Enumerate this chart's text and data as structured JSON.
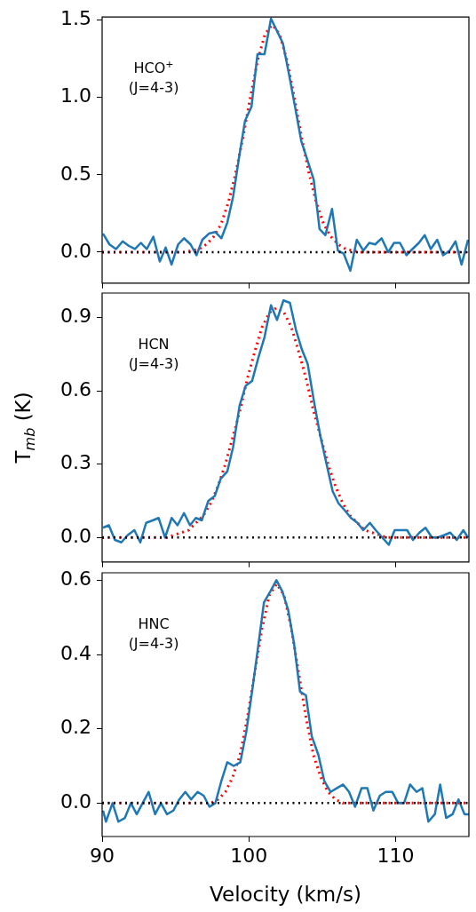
{
  "chart_data": [
    {
      "type": "line",
      "xlim": [
        90,
        115
      ],
      "xticks": [
        90,
        100,
        110
      ],
      "ylim": [
        -0.2,
        1.52
      ],
      "yticks": [
        {
          "value": 0,
          "label": "0.0"
        },
        {
          "value": 0.5,
          "label": "0.5"
        },
        {
          "value": 1,
          "label": "1.0"
        },
        {
          "value": 1.5,
          "label": "1.5"
        }
      ],
      "tick_labels": "y",
      "annotations": [
        "HCO$^{+}$",
        "(J=4-3)"
      ],
      "ref_lines": [
        {
          "axis": "y",
          "value": 0,
          "color": "#000000",
          "line_style": "dotted"
        }
      ],
      "series": [
        {
          "color": "#1f77b4",
          "line_style": "solid",
          "x": [
            90.06,
            90.5,
            90.95,
            91.4,
            91.83,
            92.24,
            92.64,
            93.04,
            93.49,
            93.93,
            94.33,
            94.73,
            95.18,
            95.58,
            96.03,
            96.43,
            96.83,
            97.28,
            97.72,
            98.13,
            98.53,
            98.93,
            99.33,
            99.74,
            100.18,
            100.59,
            101.07,
            101.51,
            101.92,
            102.32,
            102.72,
            103.17,
            103.57,
            104.01,
            104.42,
            104.82,
            105.22,
            105.67,
            106.07,
            106.47,
            106.92,
            107.36,
            107.8,
            108.21,
            108.61,
            109.05,
            109.5,
            109.9,
            110.3,
            110.75,
            111.15,
            111.59,
            111.99,
            112.4,
            112.84,
            113.24,
            113.69,
            114.09,
            114.5,
            114.94
          ],
          "values": [
            0.12,
            0.05,
            0.02,
            0.07,
            0.04,
            0.02,
            0.06,
            0.02,
            0.1,
            -0.06,
            0.03,
            -0.08,
            0.05,
            0.09,
            0.05,
            -0.02,
            0.08,
            0.12,
            0.13,
            0.09,
            0.19,
            0.36,
            0.61,
            0.85,
            0.94,
            1.28,
            1.28,
            1.51,
            1.43,
            1.35,
            1.16,
            0.93,
            0.72,
            0.59,
            0.47,
            0.15,
            0.11,
            0.28,
            0.01,
            -0.01,
            -0.12,
            0.08,
            0.01,
            0.06,
            0.05,
            0.09,
            0.0,
            0.06,
            0.06,
            -0.02,
            0.02,
            0.06,
            0.11,
            0.02,
            0.08,
            -0.02,
            0.01,
            0.07,
            -0.08,
            0.08
          ]
        },
        {
          "color": "#ff0000",
          "line_style": "dotted",
          "x": [
            90,
            95.6,
            96.1,
            96.6,
            97.1,
            97.6,
            98.1,
            98.6,
            99.1,
            99.6,
            100.1,
            100.6,
            101.1,
            101.6,
            102.1,
            102.6,
            103.1,
            103.6,
            104.1,
            104.6,
            105.1,
            105.6,
            106.1,
            106.6,
            107.1,
            107.6,
            115
          ],
          "values": [
            0,
            0,
            0.01,
            0.02,
            0.05,
            0.1,
            0.18,
            0.32,
            0.51,
            0.74,
            1.0,
            1.24,
            1.41,
            1.47,
            1.41,
            1.24,
            1.0,
            0.74,
            0.51,
            0.32,
            0.18,
            0.1,
            0.05,
            0.02,
            0.01,
            0,
            0
          ]
        }
      ]
    },
    {
      "type": "line",
      "xlim": [
        90,
        115
      ],
      "xticks": [
        90,
        100,
        110
      ],
      "ylim": [
        -0.1,
        1.0
      ],
      "yticks": [
        {
          "value": 0,
          "label": "0.0"
        },
        0.3,
        0.6,
        0.9
      ],
      "tick_labels": "y",
      "ylabel": "T$_{mb}$ (K)",
      "annotations": [
        "HCN",
        "(J=4-3)"
      ],
      "ref_lines": [
        {
          "axis": "y",
          "value": 0,
          "color": "#000000",
          "line_style": "dotted"
        }
      ],
      "series": [
        {
          "color": "#1f77b4",
          "line_style": "solid",
          "x": [
            90.06,
            90.46,
            90.87,
            91.31,
            91.75,
            92.2,
            92.6,
            93.0,
            93.45,
            93.85,
            94.29,
            94.74,
            95.14,
            95.58,
            95.99,
            96.39,
            96.79,
            97.24,
            97.68,
            98.08,
            98.53,
            98.93,
            99.37,
            99.78,
            100.22,
            100.67,
            101.07,
            101.51,
            101.92,
            102.36,
            102.8,
            103.21,
            103.61,
            104.01,
            104.46,
            104.86,
            105.3,
            105.71,
            106.11,
            106.55,
            106.96,
            107.4,
            107.8,
            108.25,
            108.65,
            109.09,
            109.54,
            109.94,
            110.38,
            110.79,
            111.19,
            111.63,
            112.04,
            112.48,
            112.88,
            113.33,
            113.73,
            114.17,
            114.62,
            114.94
          ],
          "values": [
            0.04,
            0.05,
            -0.01,
            -0.02,
            0.01,
            0.03,
            -0.02,
            0.06,
            0.07,
            0.08,
            0.0,
            0.08,
            0.05,
            0.1,
            0.05,
            0.08,
            0.07,
            0.15,
            0.17,
            0.24,
            0.27,
            0.37,
            0.54,
            0.62,
            0.64,
            0.74,
            0.82,
            0.95,
            0.89,
            0.97,
            0.96,
            0.85,
            0.77,
            0.71,
            0.55,
            0.42,
            0.3,
            0.19,
            0.14,
            0.11,
            0.08,
            0.06,
            0.03,
            0.06,
            0.03,
            0.0,
            -0.03,
            0.03,
            0.03,
            0.03,
            -0.01,
            0.02,
            0.04,
            0.0,
            0.0,
            0.01,
            0.02,
            -0.01,
            0.03,
            0.0
          ]
        },
        {
          "color": "#ff0000",
          "line_style": "dotted",
          "x": [
            90,
            93.9,
            94.4,
            94.9,
            95.4,
            95.9,
            96.4,
            96.9,
            97.4,
            97.9,
            98.4,
            98.9,
            99.4,
            99.9,
            100.4,
            100.9,
            101.4,
            101.9,
            102.4,
            102.9,
            103.4,
            103.9,
            104.4,
            104.9,
            105.4,
            105.9,
            106.4,
            106.9,
            107.4,
            107.9,
            108.4,
            108.9,
            109.4,
            109.9,
            115
          ],
          "values": [
            0,
            0,
            0,
            0.01,
            0.02,
            0.03,
            0.06,
            0.09,
            0.14,
            0.21,
            0.3,
            0.41,
            0.52,
            0.65,
            0.76,
            0.86,
            0.92,
            0.94,
            0.92,
            0.86,
            0.76,
            0.65,
            0.52,
            0.41,
            0.3,
            0.21,
            0.14,
            0.09,
            0.06,
            0.03,
            0.02,
            0.01,
            0,
            0,
            0
          ]
        }
      ]
    },
    {
      "type": "line",
      "xlim": [
        90,
        115
      ],
      "xticks": [
        90,
        100,
        110
      ],
      "ylim": [
        -0.09,
        0.62
      ],
      "yticks": [
        {
          "value": 0,
          "label": "0.0"
        },
        0.2,
        0.4,
        0.6
      ],
      "xlabel": "Velocity (km/s)",
      "annotations": [
        "HNC",
        "(J=4-3)"
      ],
      "ref_lines": [
        {
          "axis": "y",
          "value": 0,
          "color": "#000000",
          "line_style": "dotted"
        }
      ],
      "series": [
        {
          "color": "#1f77b4",
          "line_style": "solid",
          "x": [
            90.06,
            90.26,
            90.71,
            91.11,
            91.55,
            91.96,
            92.36,
            92.76,
            93.17,
            93.61,
            94.01,
            94.42,
            94.86,
            95.26,
            95.67,
            96.07,
            96.51,
            96.92,
            97.32,
            97.72,
            98.13,
            98.53,
            98.97,
            99.42,
            99.82,
            100.22,
            100.63,
            101.03,
            101.47,
            101.88,
            102.28,
            102.68,
            103.08,
            103.49,
            103.89,
            104.29,
            104.74,
            105.14,
            105.58,
            105.99,
            106.43,
            106.83,
            107.24,
            107.68,
            108.08,
            108.49,
            108.93,
            109.33,
            109.78,
            110.18,
            110.58,
            110.99,
            111.43,
            111.83,
            112.24,
            112.68,
            113.04,
            113.45,
            113.89,
            114.29,
            114.7,
            115.0
          ],
          "values": [
            -0.02,
            -0.05,
            0.0,
            -0.05,
            -0.04,
            0.0,
            -0.03,
            0.0,
            0.03,
            -0.03,
            0.0,
            -0.03,
            -0.02,
            0.01,
            0.03,
            0.01,
            0.03,
            0.02,
            -0.01,
            0.0,
            0.06,
            0.11,
            0.1,
            0.11,
            0.19,
            0.3,
            0.42,
            0.54,
            0.57,
            0.6,
            0.57,
            0.52,
            0.43,
            0.3,
            0.29,
            0.18,
            0.13,
            0.06,
            0.03,
            0.04,
            0.05,
            0.03,
            -0.01,
            0.04,
            0.04,
            -0.02,
            0.02,
            0.03,
            0.03,
            0.0,
            0.0,
            0.05,
            0.03,
            0.04,
            -0.05,
            -0.03,
            0.05,
            -0.04,
            -0.03,
            0.01,
            -0.03,
            -0.03
          ]
        },
        {
          "color": "#ff0000",
          "line_style": "dotted",
          "x": [
            90,
            96.9,
            97.4,
            97.9,
            98.4,
            98.9,
            99.4,
            99.9,
            100.4,
            100.9,
            101.4,
            101.9,
            102.4,
            102.9,
            103.4,
            103.9,
            104.4,
            104.9,
            105.4,
            105.9,
            106.4,
            106.9,
            115
          ],
          "values": [
            0,
            0,
            0,
            0.01,
            0.03,
            0.07,
            0.13,
            0.23,
            0.35,
            0.47,
            0.56,
            0.59,
            0.56,
            0.47,
            0.35,
            0.23,
            0.13,
            0.07,
            0.03,
            0.01,
            0,
            0,
            0
          ]
        }
      ]
    }
  ]
}
